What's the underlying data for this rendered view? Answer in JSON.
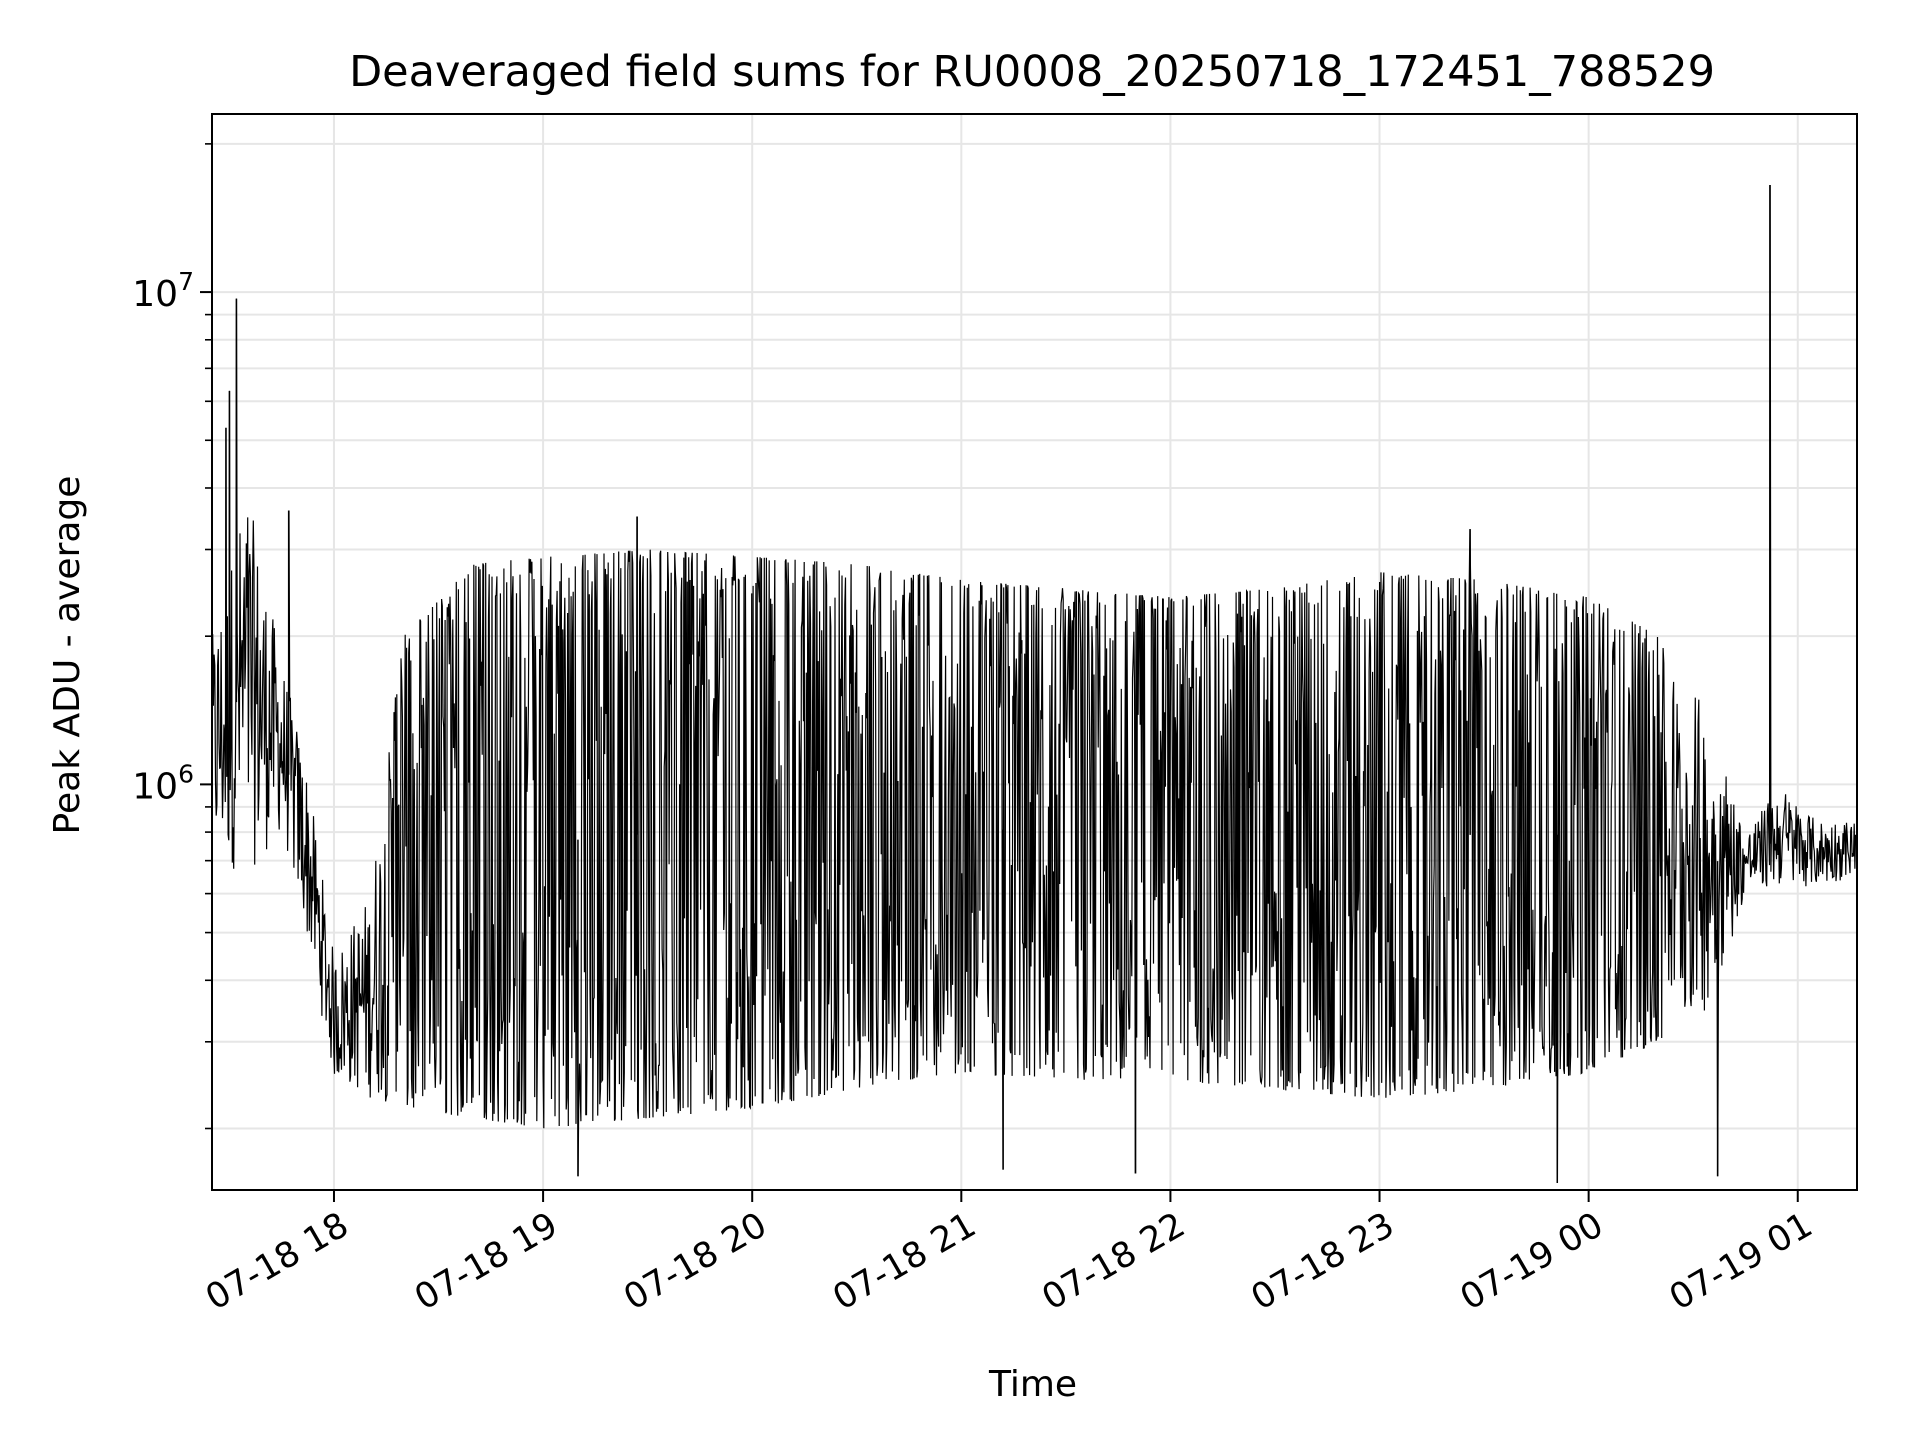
{
  "chart_data": {
    "type": "line",
    "title": "Deaveraged field sums for RU0008_20250718_172451_788529",
    "xlabel": "Time",
    "ylabel": "Peak ADU - average",
    "x_axis": {
      "type": "time",
      "range": [
        "2025-07-18 17:25",
        "2025-07-19 01:17"
      ],
      "ticks": [
        "2025-07-18 18:00",
        "2025-07-18 19:00",
        "2025-07-18 20:00",
        "2025-07-18 21:00",
        "2025-07-18 22:00",
        "2025-07-18 23:00",
        "2025-07-19 00:00",
        "2025-07-19 01:00"
      ],
      "tick_labels": [
        "07-18 18",
        "07-18 19",
        "07-18 20",
        "07-18 21",
        "07-18 22",
        "07-18 23",
        "07-19 00",
        "07-19 01"
      ],
      "tick_rotation": "30deg"
    },
    "y_axis": {
      "scale": "log",
      "range": [
        150000,
        23000000
      ],
      "ticks": [
        1000000,
        10000000
      ],
      "tick_labels": [
        {
          "base": "10",
          "exp": "6"
        },
        {
          "base": "10",
          "exp": "7"
        }
      ]
    },
    "grid": true,
    "line_color": "#000000",
    "series": [
      {
        "envelope": [
          {
            "t": "2025-07-18 17:25",
            "low": 700000,
            "high": 2000000
          },
          {
            "t": "2025-07-18 17:35",
            "low": 650000,
            "high": 4000000
          },
          {
            "t": "2025-07-18 17:45",
            "low": 800000,
            "high": 1800000
          },
          {
            "t": "2025-07-18 17:52",
            "low": 500000,
            "high": 1100000
          },
          {
            "t": "2025-07-18 18:00",
            "low": 250000,
            "high": 450000
          },
          {
            "t": "2025-07-18 18:10",
            "low": 230000,
            "high": 600000
          },
          {
            "t": "2025-07-18 18:20",
            "low": 220000,
            "high": 2000000
          },
          {
            "t": "2025-07-18 18:40",
            "low": 210000,
            "high": 2800000
          },
          {
            "t": "2025-07-18 19:00",
            "low": 200000,
            "high": 2900000
          },
          {
            "t": "2025-07-18 19:30",
            "low": 210000,
            "high": 3000000
          },
          {
            "t": "2025-07-18 20:00",
            "low": 220000,
            "high": 2900000
          },
          {
            "t": "2025-07-18 20:30",
            "low": 240000,
            "high": 2800000
          },
          {
            "t": "2025-07-18 21:00",
            "low": 260000,
            "high": 2600000
          },
          {
            "t": "2025-07-18 21:30",
            "low": 250000,
            "high": 2500000
          },
          {
            "t": "2025-07-18 22:00",
            "low": 250000,
            "high": 2400000
          },
          {
            "t": "2025-07-18 22:30",
            "low": 240000,
            "high": 2500000
          },
          {
            "t": "2025-07-18 23:00",
            "low": 230000,
            "high": 2700000
          },
          {
            "t": "2025-07-18 23:30",
            "low": 240000,
            "high": 2600000
          },
          {
            "t": "2025-07-19 00:00",
            "low": 260000,
            "high": 2400000
          },
          {
            "t": "2025-07-19 00:20",
            "low": 300000,
            "high": 2000000
          },
          {
            "t": "2025-07-19 00:35",
            "low": 350000,
            "high": 1400000
          },
          {
            "t": "2025-07-19 00:45",
            "low": 600000,
            "high": 800000
          },
          {
            "t": "2025-07-19 00:55",
            "low": 620000,
            "high": 1000000
          },
          {
            "t": "2025-07-19 01:05",
            "low": 620000,
            "high": 850000
          },
          {
            "t": "2025-07-19 01:17",
            "low": 650000,
            "high": 850000
          }
        ],
        "spikes": [
          {
            "t": "2025-07-18 17:29",
            "value": 5300000
          },
          {
            "t": "2025-07-18 17:30",
            "value": 6300000
          },
          {
            "t": "2025-07-18 17:32",
            "value": 9700000
          },
          {
            "t": "2025-07-18 17:47",
            "value": 3600000
          },
          {
            "t": "2025-07-18 19:27",
            "value": 3500000
          },
          {
            "t": "2025-07-18 23:26",
            "value": 3300000
          },
          {
            "t": "2025-07-19 00:52",
            "value": 16500000
          },
          {
            "t": "2025-07-18 19:10",
            "value": 160000
          },
          {
            "t": "2025-07-18 21:12",
            "value": 165000
          },
          {
            "t": "2025-07-18 21:50",
            "value": 162000
          },
          {
            "t": "2025-07-18 23:51",
            "value": 155000
          },
          {
            "t": "2025-07-19 00:37",
            "value": 160000
          }
        ]
      }
    ]
  }
}
